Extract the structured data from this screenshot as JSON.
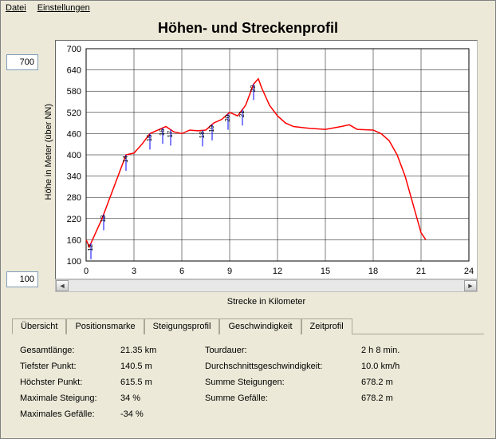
{
  "menu": {
    "file": "Datei",
    "settings": "Einstellungen"
  },
  "title": "Höhen- und Streckenprofil",
  "y_max_input": "700",
  "y_min_input": "100",
  "y_axis_label": "Höhe in Meter (über NN)",
  "x_axis_label": "Strecke in Kilometer",
  "chart": {
    "type": "line",
    "xlim": [
      0,
      24
    ],
    "ylim": [
      100,
      700
    ],
    "xtick_step": 3,
    "ytick_step": 60,
    "background_color": "#ffffff",
    "grid_color": "#000000",
    "line_color": "#ff0000",
    "line_width": 1.5,
    "tick_fontsize": 11,
    "markers": [
      {
        "x": 0.3,
        "label": "12"
      },
      {
        "x": 1.1,
        "label": "13"
      },
      {
        "x": 2.5,
        "label": "14"
      },
      {
        "x": 4.0,
        "label": "15"
      },
      {
        "x": 4.8,
        "label": "16"
      },
      {
        "x": 5.3,
        "label": "17"
      },
      {
        "x": 7.3,
        "label": "18"
      },
      {
        "x": 7.9,
        "label": "19"
      },
      {
        "x": 8.9,
        "label": "20"
      },
      {
        "x": 9.8,
        "label": "21"
      },
      {
        "x": 10.5,
        "label": "22"
      }
    ],
    "marker_color": "#0000ff",
    "marker_label_fontsize": 8,
    "points": [
      [
        0,
        160
      ],
      [
        0.2,
        140
      ],
      [
        0.5,
        170
      ],
      [
        1,
        220
      ],
      [
        1.5,
        280
      ],
      [
        2,
        340
      ],
      [
        2.5,
        400
      ],
      [
        3,
        405
      ],
      [
        3.5,
        430
      ],
      [
        4,
        460
      ],
      [
        4.5,
        470
      ],
      [
        5,
        480
      ],
      [
        5.5,
        465
      ],
      [
        6,
        460
      ],
      [
        6.5,
        470
      ],
      [
        7,
        468
      ],
      [
        7.5,
        470
      ],
      [
        8,
        490
      ],
      [
        8.5,
        500
      ],
      [
        9,
        520
      ],
      [
        9.5,
        510
      ],
      [
        10,
        540
      ],
      [
        10.5,
        600
      ],
      [
        10.8,
        615
      ],
      [
        11,
        590
      ],
      [
        11.5,
        540
      ],
      [
        12,
        510
      ],
      [
        12.5,
        490
      ],
      [
        13,
        480
      ],
      [
        14,
        475
      ],
      [
        15,
        472
      ],
      [
        16,
        480
      ],
      [
        16.5,
        485
      ],
      [
        17,
        472
      ],
      [
        18,
        470
      ],
      [
        18.5,
        460
      ],
      [
        19,
        440
      ],
      [
        19.5,
        400
      ],
      [
        20,
        340
      ],
      [
        20.5,
        260
      ],
      [
        21,
        180
      ],
      [
        21.3,
        160
      ]
    ]
  },
  "tabs": {
    "active": 0,
    "items": [
      "Übersicht",
      "Positionsmarke",
      "Steigungsprofil",
      "Geschwindigkeit",
      "Zeitprofil"
    ]
  },
  "stats": {
    "left": [
      {
        "label": "Gesamtlänge:",
        "value": "21.35 km"
      },
      {
        "label": "Tiefster Punkt:",
        "value": "140.5 m"
      },
      {
        "label": "Höchster Punkt:",
        "value": "615.5 m"
      },
      {
        "label": "Maximale Steigung:",
        "value": "34 %"
      },
      {
        "label": "Maximales Gefälle:",
        "value": "-34 %"
      }
    ],
    "right": [
      {
        "label": "Tourdauer:",
        "value": "2 h 8 min."
      },
      {
        "label": "Durchschnittsgeschwindigkeit:",
        "value": "10.0 km/h"
      },
      {
        "label": "Summe Steigungen:",
        "value": "678.2 m"
      },
      {
        "label": "Summe Gefälle:",
        "value": "678.2 m"
      }
    ]
  }
}
